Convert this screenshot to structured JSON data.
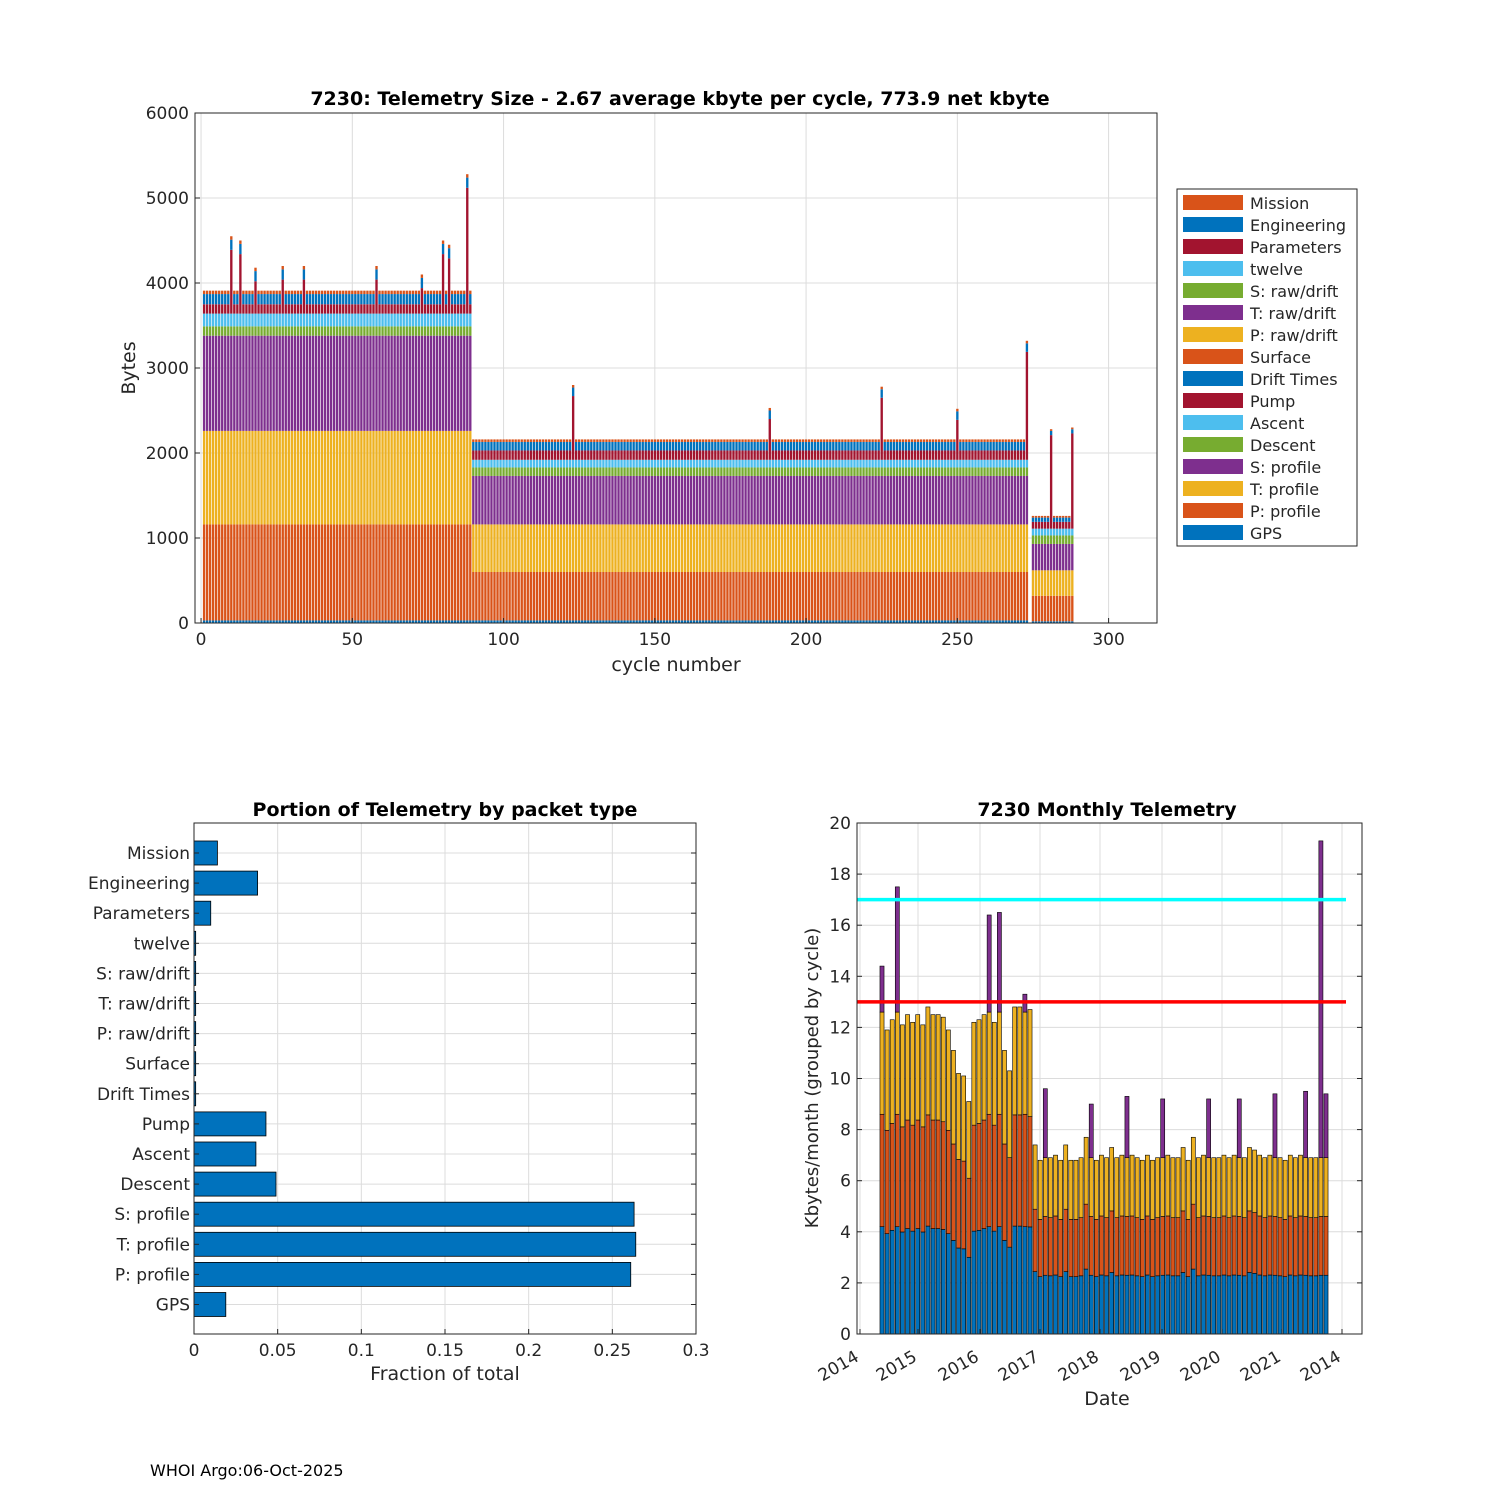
{
  "footer": "WHOI Argo:06-Oct-2025",
  "chart_data": [
    {
      "type": "bar",
      "stacked": true,
      "title": "7230: Telemetry Size - 2.67 average kbyte per cycle,  773.9 net kbyte",
      "xlabel": "cycle number",
      "ylabel": "Bytes",
      "xlim": [
        -2,
        316
      ],
      "ylim": [
        0,
        6000
      ],
      "xticks": [
        0,
        50,
        100,
        150,
        200,
        250,
        300
      ],
      "yticks": [
        0,
        1000,
        2000,
        3000,
        4000,
        5000,
        6000
      ],
      "grid": true,
      "legend_position": "outside-right",
      "legend": [
        "Mission",
        "Engineering",
        "Parameters",
        "twelve",
        "S: raw/drift",
        "T: raw/drift",
        "P: raw/drift",
        "Surface",
        "Drift Times",
        "Pump",
        "Ascent",
        "Descent",
        "S: profile",
        "T: profile",
        "P: profile",
        "GPS"
      ],
      "series_colors": {
        "GPS": "#0072BD",
        "P: profile": "#D95319",
        "T: profile": "#EDB120",
        "S: profile": "#7E2F8E",
        "Descent": "#77AC30",
        "Ascent": "#4DBEEE",
        "Pump": "#A2142F",
        "Drift Times": "#0072BD",
        "Surface": "#D95319",
        "P: raw/drift": "#EDB120",
        "T: raw/drift": "#7E2F8E",
        "S: raw/drift": "#77AC30",
        "twelve": "#4DBEEE",
        "Parameters": "#A2142F",
        "Engineering": "#0072BD",
        "Mission": "#D95319"
      },
      "segments": [
        {
          "from": 1,
          "to": 89,
          "layers": {
            "GPS": 30,
            "P: profile": 1130,
            "T: profile": 1100,
            "S: profile": 1120,
            "Descent": 110,
            "Ascent": 150,
            "Pump": 110,
            "Engineering": 120,
            "Mission": 40
          }
        },
        {
          "from": 90,
          "to": 273,
          "layers": {
            "GPS": 30,
            "P: profile": 570,
            "T: profile": 560,
            "S: profile": 570,
            "Descent": 100,
            "Ascent": 90,
            "Pump": 110,
            "Engineering": 100,
            "Mission": 30
          }
        },
        {
          "from": 275,
          "to": 288,
          "layers": {
            "GPS": 20,
            "P: profile": 300,
            "T: profile": 300,
            "S: profile": 310,
            "Descent": 100,
            "Ascent": 80,
            "Pump": 80,
            "Engineering": 50,
            "Mission": 20
          }
        }
      ],
      "peaks": [
        {
          "cycle": 10,
          "total": 4550
        },
        {
          "cycle": 13,
          "total": 4500
        },
        {
          "cycle": 18,
          "total": 4180
        },
        {
          "cycle": 27,
          "total": 4200
        },
        {
          "cycle": 34,
          "total": 4200
        },
        {
          "cycle": 58,
          "total": 4200
        },
        {
          "cycle": 73,
          "total": 4100
        },
        {
          "cycle": 80,
          "total": 4500
        },
        {
          "cycle": 82,
          "total": 4450
        },
        {
          "cycle": 88,
          "total": 5280
        },
        {
          "cycle": 123,
          "total": 2800
        },
        {
          "cycle": 188,
          "total": 2530
        },
        {
          "cycle": 225,
          "total": 2780
        },
        {
          "cycle": 250,
          "total": 2520
        },
        {
          "cycle": 273,
          "total": 3320
        },
        {
          "cycle": 281,
          "total": 2280
        },
        {
          "cycle": 288,
          "total": 2300
        }
      ]
    },
    {
      "type": "bar",
      "orientation": "horizontal",
      "title": "Portion of Telemetry by packet type",
      "xlabel": "Fraction of total",
      "ylabel": "",
      "xlim": [
        0,
        0.3
      ],
      "xticks": [
        0,
        0.05,
        0.1,
        0.15,
        0.2,
        0.25,
        0.3
      ],
      "xticklabels": [
        "0",
        "0.05",
        "0.1",
        "0.15",
        "0.2",
        "0.25",
        "0.3"
      ],
      "grid": true,
      "categories": [
        "Mission",
        "Engineering",
        "Parameters",
        "twelve",
        "S: raw/drift",
        "T: raw/drift",
        "P: raw/drift",
        "Surface",
        "Drift Times",
        "Pump",
        "Ascent",
        "Descent",
        "S: profile",
        "T: profile",
        "P: profile",
        "GPS"
      ],
      "values": [
        0.014,
        0.038,
        0.01,
        0.001,
        0.001,
        0.001,
        0.001,
        0.001,
        0.001,
        0.043,
        0.037,
        0.049,
        0.263,
        0.264,
        0.261,
        0.019
      ],
      "color": "#0072BD"
    },
    {
      "type": "bar",
      "stacked": true,
      "title": "7230 Monthly Telemetry",
      "xlabel": "Date",
      "ylabel": "Kbytes/month (grouped by cycle)",
      "ylim": [
        0,
        20
      ],
      "yticks": [
        0,
        2,
        4,
        6,
        8,
        10,
        12,
        14,
        16,
        18,
        20
      ],
      "xticklabels": [
        "2014",
        "2015",
        "2016",
        "2017",
        "2018",
        "2019",
        "2020",
        "2021",
        "2014"
      ],
      "grid": true,
      "reference_lines": [
        {
          "y": 17,
          "color": "#00FFFF"
        },
        {
          "y": 13,
          "color": "#FF0000"
        }
      ],
      "layer_colors": [
        "#0072BD",
        "#D95319",
        "#EDB120",
        "#7E2F8E"
      ],
      "monthly_totals": [
        14.4,
        11.9,
        12.3,
        17.5,
        12.1,
        12.5,
        12.2,
        12.5,
        12.1,
        12.8,
        12.5,
        12.5,
        12.4,
        11.9,
        11.1,
        10.2,
        10.1,
        9.1,
        12.2,
        12.3,
        12.5,
        16.4,
        12.2,
        16.5,
        11.1,
        10.3,
        12.8,
        12.8,
        13.3,
        12.7,
        7.4,
        6.8,
        9.6,
        6.9,
        7.0,
        6.8,
        7.4,
        6.8,
        6.8,
        6.9,
        7.7,
        9.0,
        6.8,
        7.0,
        6.9,
        7.3,
        6.9,
        7.0,
        9.3,
        7.0,
        6.9,
        6.8,
        7.0,
        6.8,
        6.9,
        9.2,
        7.0,
        6.9,
        6.9,
        7.3,
        6.8,
        7.7,
        6.9,
        7.0,
        9.2,
        6.9,
        6.9,
        7.0,
        6.9,
        7.0,
        9.2,
        6.9,
        7.3,
        7.2,
        7.0,
        6.9,
        7.0,
        9.4,
        6.9,
        6.8,
        7.0,
        6.9,
        7.0,
        9.5,
        6.9,
        6.9,
        19.3,
        9.4
      ]
    }
  ]
}
